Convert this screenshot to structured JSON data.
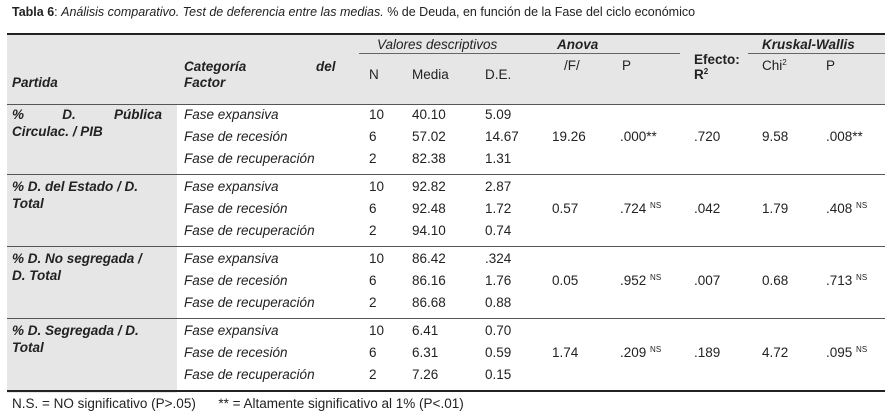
{
  "caption": {
    "label": "Tabla 6",
    "title": "Análisis comparativo.  Test de deferencia entre las medias.",
    "subtitle": "% de Deuda, en función de la Fase del ciclo económico"
  },
  "headers": {
    "partida": "Partida",
    "categoria_a": "Categoría",
    "categoria_b": "del",
    "categoria_c": "Factor",
    "valores": "Valores descriptivos",
    "n": "N",
    "media": "Media",
    "de": "D.E.",
    "anova": "Anova",
    "f": "/F/",
    "p": "P",
    "efecto_a": "Efecto:",
    "efecto_b": "R",
    "efecto_sup": "2",
    "kruskal": "Kruskal-Wallis",
    "chi": "Chi",
    "chi_sup": "2",
    "p2": "P"
  },
  "groups": [
    {
      "partida": [
        "% D. Pública",
        "Circulac. / PIB"
      ],
      "rows": [
        {
          "fase": "Fase expansiva",
          "n": "10",
          "media": "40.10",
          "de": "5.09"
        },
        {
          "fase": "Fase de recesión",
          "n": "6",
          "media": "57.02",
          "de": "14.67"
        },
        {
          "fase": "Fase de recuperación",
          "n": "2",
          "media": "82.38",
          "de": "1.31"
        }
      ],
      "f": "19.26",
      "p": ".000**",
      "p_sup": "",
      "efecto": ".720",
      "chi": "9.58",
      "p2": ".008**",
      "p2_sup": ""
    },
    {
      "partida": [
        "% D. del Estado / D.",
        "Total"
      ],
      "rows": [
        {
          "fase": "Fase expansiva",
          "n": "10",
          "media": "92.82",
          "de": "2.87"
        },
        {
          "fase": "Fase de recesión",
          "n": "6",
          "media": "92.48",
          "de": "1.72"
        },
        {
          "fase": "Fase de recuperación",
          "n": "2",
          "media": "94.10",
          "de": "0.74"
        }
      ],
      "f": "0.57",
      "p": ".724",
      "p_sup": "NS",
      "efecto": ".042",
      "chi": "1.79",
      "p2": ".408",
      "p2_sup": "NS"
    },
    {
      "partida": [
        "% D. No segregada /",
        "D. Total"
      ],
      "rows": [
        {
          "fase": "Fase expansiva",
          "n": "10",
          "media": "86.42",
          "de": ".324"
        },
        {
          "fase": "Fase de recesión",
          "n": "6",
          "media": "86.16",
          "de": "1.76"
        },
        {
          "fase": "Fase de recuperación",
          "n": "2",
          "media": "86.68",
          "de": "0.88"
        }
      ],
      "f": "0.05",
      "p": ".952",
      "p_sup": "NS",
      "efecto": ".007",
      "chi": "0.68",
      "p2": ".713",
      "p2_sup": "NS"
    },
    {
      "partida": [
        "% D. Segregada / D.",
        "Total"
      ],
      "rows": [
        {
          "fase": "Fase expansiva",
          "n": "10",
          "media": "6.41",
          "de": "0.70"
        },
        {
          "fase": "Fase de recesión",
          "n": "6",
          "media": "6.31",
          "de": "0.59"
        },
        {
          "fase": "Fase de recuperación",
          "n": "2",
          "media": "7.26",
          "de": "0.15"
        }
      ],
      "f": "1.74",
      "p": ".209",
      "p_sup": "NS",
      "efecto": ".189",
      "chi": "4.72",
      "p2": ".095",
      "p2_sup": "NS"
    }
  ],
  "footer": "N.S. = NO significativo (P>.05)      ** = Altamente significativo al 1% (P<.01)"
}
